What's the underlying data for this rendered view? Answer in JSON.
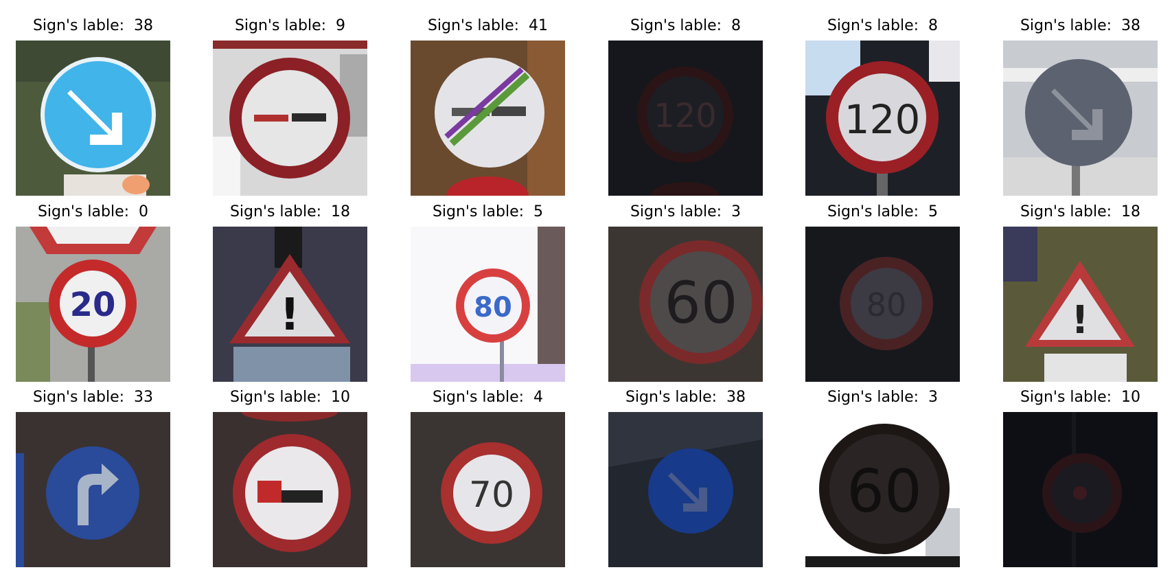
{
  "figure": {
    "caption_prefix": "Sign's lable:",
    "samples": [
      {
        "label": "38",
        "icon": "keep-right-sign-icon"
      },
      {
        "label": "9",
        "icon": "no-passing-sign-icon"
      },
      {
        "label": "41",
        "icon": "end-of-no-passing-sign-icon"
      },
      {
        "label": "8",
        "icon": "speed-limit-120-sign-icon"
      },
      {
        "label": "8",
        "icon": "speed-limit-120-sign-icon"
      },
      {
        "label": "38",
        "icon": "keep-right-sign-icon"
      },
      {
        "label": "0",
        "icon": "speed-limit-20-sign-icon"
      },
      {
        "label": "18",
        "icon": "general-caution-sign-icon"
      },
      {
        "label": "5",
        "icon": "speed-limit-80-sign-icon"
      },
      {
        "label": "3",
        "icon": "speed-limit-60-sign-icon"
      },
      {
        "label": "5",
        "icon": "speed-limit-80-sign-icon"
      },
      {
        "label": "18",
        "icon": "general-caution-sign-icon"
      },
      {
        "label": "33",
        "icon": "turn-right-ahead-sign-icon"
      },
      {
        "label": "10",
        "icon": "no-passing-trucks-sign-icon"
      },
      {
        "label": "4",
        "icon": "speed-limit-70-sign-icon"
      },
      {
        "label": "38",
        "icon": "keep-right-sign-icon"
      },
      {
        "label": "3",
        "icon": "speed-limit-60-sign-icon"
      },
      {
        "label": "10",
        "icon": "no-passing-trucks-sign-icon"
      }
    ],
    "sign_texts": {
      "limit120": "120",
      "limit20": "20",
      "limit80": "80",
      "limit60": "60",
      "limit70": "70",
      "caution": "!"
    }
  }
}
